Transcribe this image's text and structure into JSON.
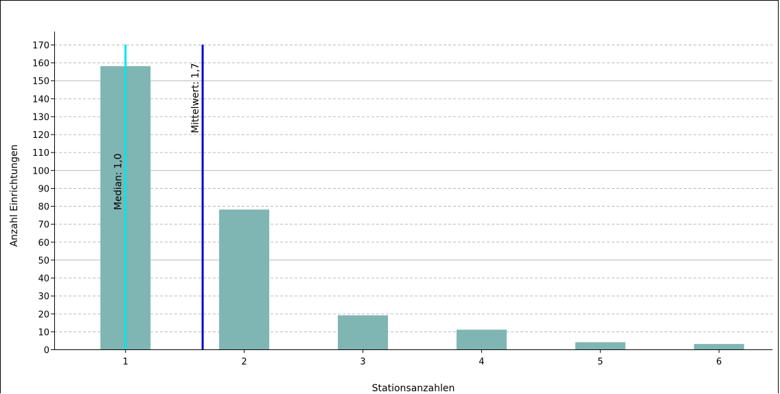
{
  "chart_data": {
    "type": "bar",
    "xlabel": "Stationsanzahlen",
    "ylabel": "Anzahl Einrichtungen",
    "categories": [
      "1",
      "2",
      "3",
      "4",
      "5",
      "6"
    ],
    "x": [
      1,
      2,
      3,
      4,
      5,
      6
    ],
    "values": [
      158,
      78,
      19,
      11,
      4,
      3
    ],
    "ylim": [
      0,
      170
    ],
    "xlim": [
      0.4,
      6.45
    ],
    "yticks": [
      0,
      10,
      20,
      30,
      40,
      50,
      60,
      70,
      80,
      90,
      100,
      110,
      120,
      130,
      140,
      150,
      160,
      170
    ],
    "grid": {
      "major_y_every": 50,
      "minor_y_every": 10,
      "major_style": "solid",
      "minor_style": "dashed"
    },
    "reference_lines": [
      {
        "label": "Median: 1,0",
        "x": 1.0,
        "color": "#00e5ee"
      },
      {
        "label": "Mittelwert: 1,7",
        "x": 1.65,
        "color": "#0000cc"
      }
    ],
    "colors": {
      "bar": "#7fb5b2",
      "axis": "#000000",
      "grid": "#b8b8b8"
    }
  }
}
